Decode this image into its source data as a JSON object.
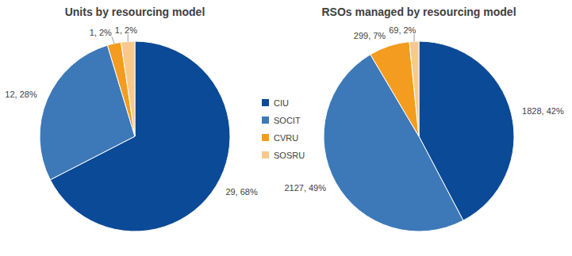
{
  "chart_data": [
    {
      "type": "pie",
      "title": "Units by resourcing model",
      "categories": [
        "CIU",
        "SOCIT",
        "CVRU",
        "SOSRU"
      ],
      "values": [
        29,
        12,
        1,
        1
      ],
      "value_labels": [
        "29, 68%",
        "12, 28%",
        "1, 2%",
        "1, 2%"
      ],
      "colors": [
        "#0b4a97",
        "#3d79b8",
        "#f39c1f",
        "#f8c98a"
      ],
      "data_labels": true,
      "legend": "right"
    },
    {
      "type": "pie",
      "title": "RSOs managed by resourcing model",
      "categories": [
        "CIU",
        "SOCIT",
        "CVRU",
        "SOSRU"
      ],
      "values": [
        1828,
        2127,
        299,
        69
      ],
      "value_labels": [
        "1828, 42%",
        "2127, 49%",
        "299, 7%",
        "69, 2%"
      ],
      "colors": [
        "#0b4a97",
        "#3d79b8",
        "#f39c1f",
        "#f8c98a"
      ],
      "data_labels": true
    }
  ]
}
